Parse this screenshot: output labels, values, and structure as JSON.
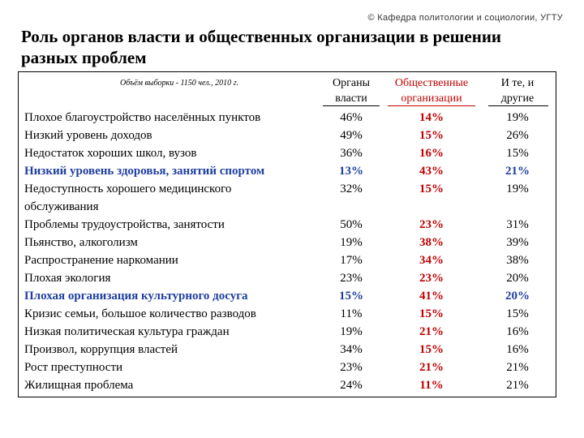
{
  "copyright": "© Кафедра политологии и социологии, УГТУ",
  "title": "Роль органов власти и общественных организации в решении разных проблем",
  "table": {
    "sample_note": "Объём выборки - 1150 чел., 2010 г.",
    "columns": [
      {
        "label": "Органы власти"
      },
      {
        "label": "Общественные организации"
      },
      {
        "label": "И те, и другие"
      }
    ],
    "rows": [
      {
        "label": "Плохое благоустройство населённых пунктов",
        "v": [
          "46%",
          "14%",
          "19%"
        ],
        "highlight": false,
        "blue": [
          false,
          false,
          false
        ]
      },
      {
        "label": "Низкий уровень доходов",
        "v": [
          "49%",
          "15%",
          "26%"
        ],
        "highlight": false,
        "blue": [
          false,
          false,
          false
        ]
      },
      {
        "label": "Недостаток хороших школ, вузов",
        "v": [
          "36%",
          "16%",
          "15%"
        ],
        "highlight": false,
        "blue": [
          false,
          false,
          false
        ]
      },
      {
        "label": "Низкий уровень здоровья, занятий спортом",
        "v": [
          "13%",
          "43%",
          "21%"
        ],
        "highlight": true,
        "blue": [
          true,
          false,
          true
        ]
      },
      {
        "label": "Недоступность хорошего медицинского",
        "label2": "обслуживания",
        "v": [
          "32%",
          "15%",
          "19%"
        ],
        "highlight": false,
        "blue": [
          false,
          false,
          false
        ]
      },
      {
        "label": "Проблемы трудоустройства, занятости",
        "v": [
          "50%",
          "23%",
          "31%"
        ],
        "highlight": false,
        "blue": [
          false,
          false,
          false
        ]
      },
      {
        "label": "Пьянство, алкоголизм",
        "v": [
          "19%",
          "38%",
          "39%"
        ],
        "highlight": false,
        "blue": [
          false,
          false,
          false
        ]
      },
      {
        "label": "Распространение наркомании",
        "v": [
          "17%",
          "34%",
          "38%"
        ],
        "highlight": false,
        "blue": [
          false,
          false,
          false
        ]
      },
      {
        "label": "Плохая экология",
        "v": [
          "23%",
          "23%",
          "20%"
        ],
        "highlight": false,
        "blue": [
          false,
          false,
          false
        ]
      },
      {
        "label": "Плохая организация культурного досуга",
        "v": [
          "15%",
          "41%",
          "20%"
        ],
        "highlight": true,
        "blue": [
          true,
          false,
          true
        ]
      },
      {
        "label": "Кризис семьи, большое количество разводов",
        "v": [
          "11%",
          "15%",
          "15%"
        ],
        "highlight": false,
        "blue": [
          false,
          false,
          false
        ]
      },
      {
        "label": "Низкая политическая культура граждан",
        "v": [
          "19%",
          "21%",
          "16%"
        ],
        "highlight": false,
        "blue": [
          false,
          false,
          false
        ]
      },
      {
        "label": "Произвол, коррупция властей",
        "v": [
          "34%",
          "15%",
          "16%"
        ],
        "highlight": false,
        "blue": [
          false,
          false,
          false
        ]
      },
      {
        "label": "Рост преступности",
        "v": [
          "23%",
          "21%",
          "21%"
        ],
        "highlight": false,
        "blue": [
          false,
          false,
          false
        ]
      },
      {
        "label": "Жилищная проблема",
        "v": [
          "24%",
          "11%",
          "21%"
        ],
        "highlight": false,
        "blue": [
          false,
          false,
          false
        ]
      }
    ]
  },
  "colors": {
    "red": "#c00000",
    "blue": "#1f3f9f"
  }
}
